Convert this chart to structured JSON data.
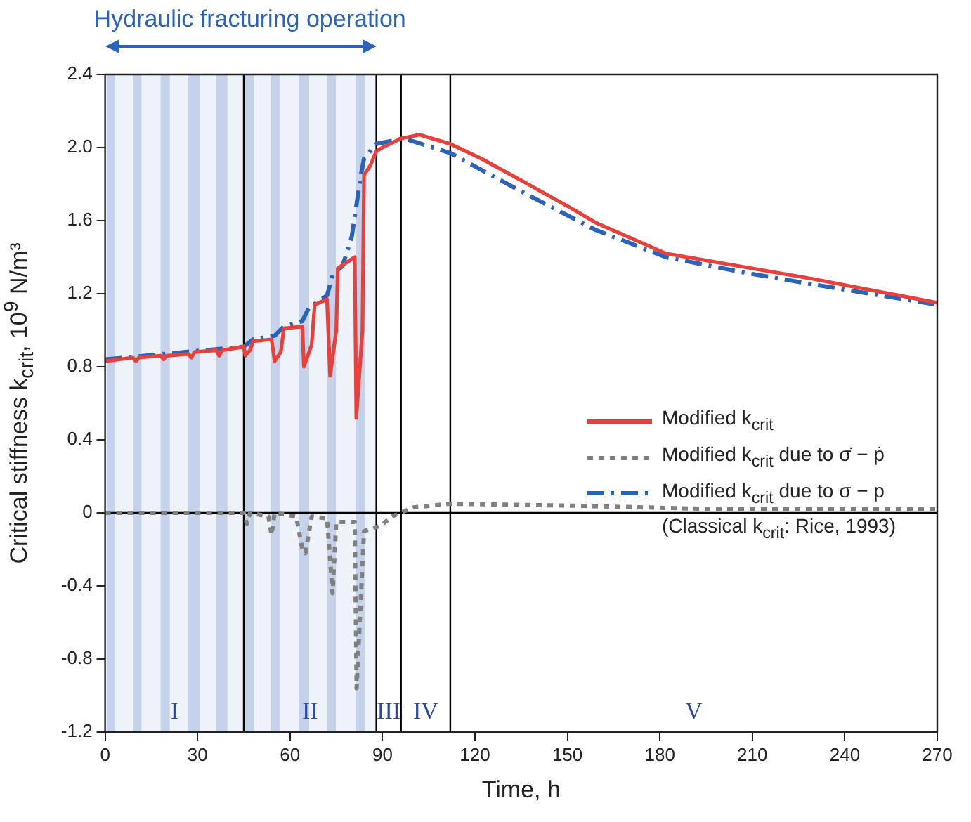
{
  "chart_data": {
    "type": "line",
    "xlabel": "Time, h",
    "ylabel": "Critical stiffness k$_{crit}$, 10$^{9}$ N/m³",
    "xlim": [
      0,
      270
    ],
    "ylim": [
      -1.2,
      2.4
    ],
    "xticks": [
      0,
      30,
      60,
      90,
      120,
      150,
      180,
      210,
      240,
      270
    ],
    "yticks": [
      {
        "value": -1.2,
        "label": "-1.2"
      },
      {
        "value": -0.8,
        "label": "-0.8"
      },
      {
        "value": -0.4,
        "label": "-0.4"
      },
      {
        "value": 0,
        "label": "0"
      },
      {
        "value": 0.4,
        "label": "0.4"
      },
      {
        "value": 0.8,
        "label": "0.8"
      },
      {
        "value": 1.2,
        "label": "1.2"
      },
      {
        "value": 1.6,
        "label": "1.6"
      },
      {
        "value": 2,
        "label": "2.0"
      },
      {
        "value": 2.4,
        "label": "2.4"
      }
    ],
    "grid": false,
    "legend": "right",
    "marker": "none",
    "series": [
      {
        "name": "Modified k$_{crit}$",
        "color": "#e8413c",
        "line_style": "solid",
        "x": [
          0,
          9,
          10,
          11,
          18,
          19,
          20,
          27,
          28,
          29,
          36,
          37,
          38,
          45,
          45.5,
          47,
          48,
          54,
          55,
          57,
          58,
          64,
          64.5,
          67,
          68,
          72,
          73,
          75,
          75.5,
          81,
          81.5,
          83.5,
          84,
          86,
          88,
          90,
          96,
          102,
          112,
          122,
          135,
          151,
          159,
          182,
          206,
          230,
          270
        ],
        "values": [
          0.83,
          0.85,
          0.83,
          0.85,
          0.86,
          0.84,
          0.86,
          0.87,
          0.85,
          0.88,
          0.89,
          0.86,
          0.89,
          0.91,
          0.86,
          0.89,
          0.94,
          0.95,
          0.83,
          0.88,
          1.01,
          1.02,
          0.8,
          0.92,
          1.14,
          1.17,
          0.75,
          1,
          1.34,
          1.4,
          0.52,
          1,
          1.85,
          1.9,
          1.98,
          2,
          2.05,
          2.07,
          2.02,
          1.94,
          1.82,
          1.67,
          1.59,
          1.42,
          1.35,
          1.28,
          1.15
        ]
      },
      {
        "name": "Modified k$_{crit}$ due to σ̇ − ṗ",
        "color": "#808080",
        "line_style": "dotted",
        "x": [
          0,
          45,
          46,
          47,
          53,
          54,
          55,
          62,
          64,
          65,
          67,
          72,
          73.8,
          75,
          81,
          81.6,
          84,
          89.5,
          93,
          100,
          112,
          150,
          200,
          270
        ],
        "values": [
          0,
          0,
          -0.06,
          0,
          -0.02,
          -0.12,
          0,
          -0.02,
          -0.2,
          -0.22,
          -0.02,
          -0.03,
          -0.44,
          -0.05,
          -0.05,
          -0.96,
          -0.1,
          -0.07,
          -0.02,
          0.03,
          0.05,
          0.04,
          0.02,
          0.02
        ]
      },
      {
        "name": "Modified k$_{crit}$ due to σ − p",
        "color": "#2b63b8",
        "line_style": "dashed",
        "x": [
          0,
          45,
          48,
          55,
          58,
          64,
          66,
          72,
          74,
          77,
          80,
          83,
          84,
          88,
          97,
          112,
          135,
          159,
          182,
          206,
          230,
          270
        ],
        "values": [
          0.84,
          0.91,
          0.95,
          0.97,
          1.02,
          1.05,
          1.12,
          1.19,
          1.31,
          1.35,
          1.51,
          1.85,
          1.94,
          2.02,
          2.05,
          1.97,
          1.76,
          1.55,
          1.4,
          1.32,
          1.25,
          1.14
        ]
      }
    ],
    "ref_lines": [
      {
        "axis": "y",
        "value": 0,
        "color": "#000000"
      },
      {
        "axis": "x",
        "value": 45,
        "color": "#000000"
      },
      {
        "axis": "x",
        "value": 88,
        "color": "#000000"
      },
      {
        "axis": "x",
        "value": 96,
        "color": "#000000"
      },
      {
        "axis": "x",
        "value": 112,
        "color": "#000000"
      }
    ],
    "bands": [
      {
        "axis": "x",
        "from": 0,
        "to": 88,
        "label": "Hydraulic fracturing operation",
        "color": "#eef3fa"
      },
      {
        "axis": "x",
        "from": 0.5,
        "to": 3.3,
        "color": "#c5d2ea"
      },
      {
        "axis": "x",
        "from": 9,
        "to": 11.8,
        "color": "#c5d2ea"
      },
      {
        "axis": "x",
        "from": 18,
        "to": 21,
        "color": "#c5d2ea"
      },
      {
        "axis": "x",
        "from": 27,
        "to": 30.7,
        "color": "#c5d2ea"
      },
      {
        "axis": "x",
        "from": 36,
        "to": 39.7,
        "color": "#c5d2ea"
      },
      {
        "axis": "x",
        "from": 45.4,
        "to": 48.2,
        "color": "#c5d2ea"
      },
      {
        "axis": "x",
        "from": 53.9,
        "to": 56.7,
        "color": "#c5d2ea"
      },
      {
        "axis": "x",
        "from": 62.9,
        "to": 66.2,
        "color": "#c5d2ea"
      },
      {
        "axis": "x",
        "from": 72,
        "to": 74.9,
        "color": "#c5d2ea"
      },
      {
        "axis": "x",
        "from": 81.3,
        "to": 84.2,
        "color": "#c5d2ea"
      }
    ],
    "annotations": [
      "I",
      "II",
      "III",
      "IV",
      "V",
      "(Classical k$_{crit}$: Rice, 1993)"
    ]
  }
}
